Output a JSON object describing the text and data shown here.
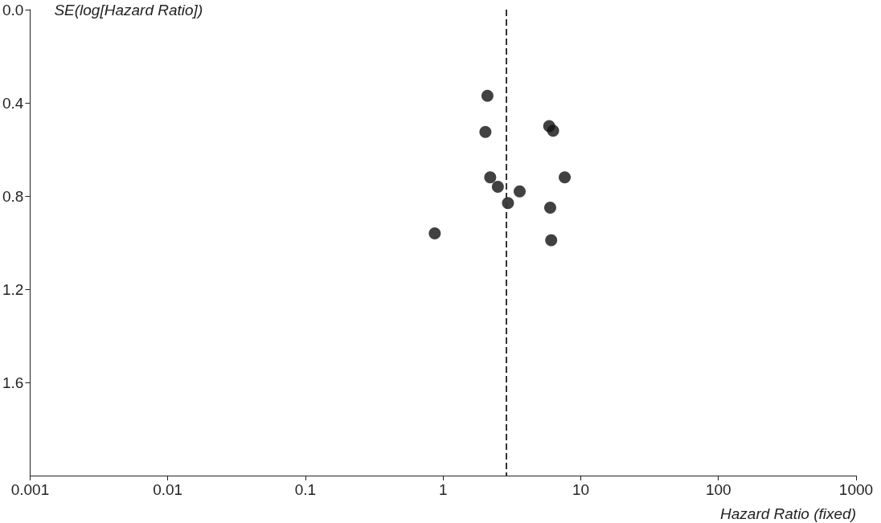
{
  "chart_data": {
    "type": "scatter",
    "xlabel": "Hazard Ratio (fixed)",
    "ylabel": "SE(log[Hazard Ratio])",
    "x": [
      2.1,
      2.03,
      5.9,
      6.3,
      7.65,
      2.2,
      3.6,
      2.5,
      2.96,
      6.0,
      0.87,
      6.1
    ],
    "values": [
      0.37,
      0.525,
      0.5,
      0.52,
      0.72,
      0.72,
      0.78,
      0.76,
      0.83,
      0.85,
      0.96,
      0.99
    ],
    "color": "#111111",
    "marker": "circle",
    "log": "x",
    "grid": false,
    "xlim": [
      0.001,
      1000
    ],
    "xticks": [
      0.001,
      0.01,
      0.1,
      1,
      10,
      100,
      1000
    ],
    "ylim": [
      2.0,
      0
    ],
    "yticks": [
      {
        "value": 0,
        "label": "0.0"
      },
      0.4,
      0.8,
      1.2,
      1.6
    ],
    "ref_lines": [
      {
        "axis": "x",
        "value": 2.88,
        "color": "#333333",
        "line_style": "dashed"
      }
    ]
  }
}
